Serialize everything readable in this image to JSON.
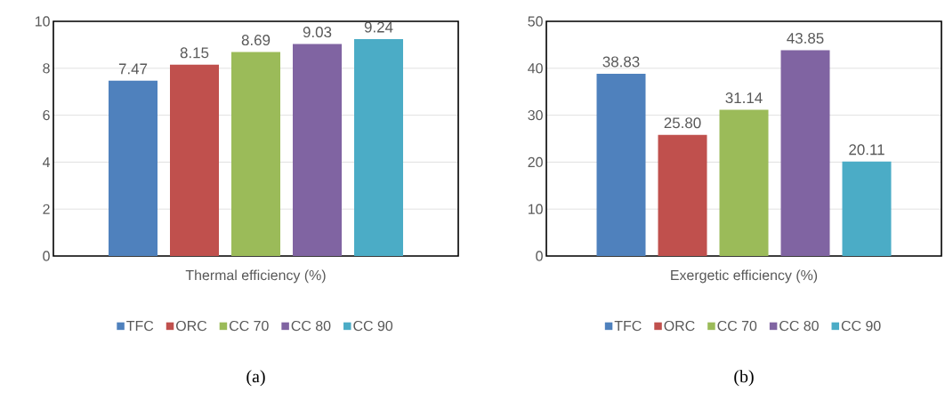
{
  "chart_data": [
    {
      "type": "bar",
      "categories": [
        "Thermal efficiency (%)"
      ],
      "ylim": [
        0,
        10
      ],
      "yticks": [
        0,
        2,
        4,
        6,
        8,
        10
      ],
      "grid": "y",
      "legend": "bottom",
      "annotations": [
        "(a)"
      ],
      "series": [
        {
          "name": "TFC",
          "color": "#4f81bd",
          "values": [
            7.47
          ],
          "value_labels": [
            "7.47"
          ]
        },
        {
          "name": "ORC",
          "color": "#c0504d",
          "values": [
            8.15
          ],
          "value_labels": [
            "8.15"
          ]
        },
        {
          "name": "CC 70",
          "color": "#9bbb59",
          "values": [
            8.69
          ],
          "value_labels": [
            "8.69"
          ]
        },
        {
          "name": "CC 80",
          "color": "#8064a2",
          "values": [
            9.03
          ],
          "value_labels": [
            "9.03"
          ]
        },
        {
          "name": "CC 90",
          "color": "#4bacc6",
          "values": [
            9.24
          ],
          "value_labels": [
            "9.24"
          ]
        }
      ]
    },
    {
      "type": "bar",
      "categories": [
        "Exergetic efficiency (%)"
      ],
      "ylim": [
        0,
        50
      ],
      "yticks": [
        0,
        10,
        20,
        30,
        40,
        50
      ],
      "grid": "y",
      "legend": "bottom",
      "annotations": [
        "(b)"
      ],
      "series": [
        {
          "name": "TFC",
          "color": "#4f81bd",
          "values": [
            38.83
          ],
          "value_labels": [
            "38.83"
          ]
        },
        {
          "name": "ORC",
          "color": "#c0504d",
          "values": [
            25.8
          ],
          "value_labels": [
            "25.80"
          ]
        },
        {
          "name": "CC 70",
          "color": "#9bbb59",
          "values": [
            31.14
          ],
          "value_labels": [
            "31.14"
          ]
        },
        {
          "name": "CC 80",
          "color": "#8064a2",
          "values": [
            43.85
          ],
          "value_labels": [
            "43.85"
          ]
        },
        {
          "name": "CC 90",
          "color": "#4bacc6",
          "values": [
            20.11
          ],
          "value_labels": [
            "20.11"
          ]
        }
      ]
    }
  ]
}
